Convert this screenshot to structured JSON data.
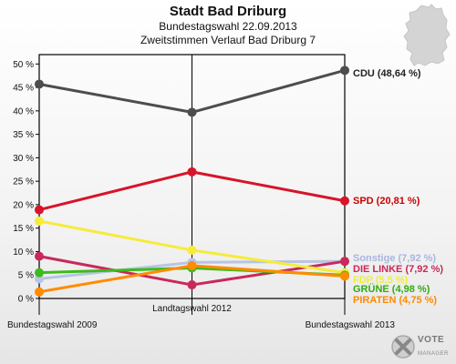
{
  "header": {
    "title": "Stadt Bad Driburg",
    "subtitle": "Bundestagswahl 22.09.2013",
    "subtitle2": "Zweitstimmen Verlauf Bad Driburg 7"
  },
  "logo": {
    "name": "VOTE",
    "sub": "MANAGER"
  },
  "chart_data": {
    "type": "line",
    "title": "Stadt Bad Driburg",
    "categories": [
      "Bundestagswahl 2009",
      "Landtagswahl 2012",
      "Bundestagswahl 2013"
    ],
    "ylim": [
      0,
      52
    ],
    "yticks": [
      "0 %",
      "5 %",
      "10 %",
      "15 %",
      "20 %",
      "25 %",
      "30 %",
      "35 %",
      "40 %",
      "45 %",
      "50 %"
    ],
    "ytick_values": [
      0,
      5,
      10,
      15,
      20,
      25,
      30,
      35,
      40,
      45,
      50
    ],
    "grid": false,
    "legend": "right (end labels)",
    "series": [
      {
        "name": "CDU",
        "label": "CDU (48,64 %)",
        "color": "#4d4d4d",
        "labelColor": "#222222",
        "values": [
          45.7,
          39.7,
          48.64
        ]
      },
      {
        "name": "SPD",
        "label": "SPD (20,81 %)",
        "color": "#d7142a",
        "labelColor": "#cc0000",
        "values": [
          18.9,
          27.0,
          20.81
        ]
      },
      {
        "name": "Sonstige",
        "label": "Sonstige (7,92 %)",
        "color": "#b8c4e4",
        "labelColor": "#a8b6e0",
        "values": [
          4.2,
          7.7,
          7.92
        ]
      },
      {
        "name": "DIE LINKE",
        "label": "DIE LINKE (7,92 %)",
        "color": "#c8285a",
        "labelColor": "#c8285a",
        "values": [
          9.0,
          2.9,
          7.92
        ]
      },
      {
        "name": "FDP",
        "label": "FDP (5,5 %)",
        "color": "#f6eb3a",
        "labelColor": "#eeee33",
        "values": [
          16.5,
          10.3,
          5.5
        ]
      },
      {
        "name": "GRÜNE",
        "label": "GRÜNE (4,98 %)",
        "color": "#3cbb1c",
        "labelColor": "#33aa11",
        "values": [
          5.5,
          6.5,
          4.98
        ]
      },
      {
        "name": "PIRATEN",
        "label": "PIRATEN (4,75 %)",
        "color": "#ff8c00",
        "labelColor": "#ff8800",
        "values": [
          1.4,
          7.0,
          4.75
        ]
      }
    ]
  }
}
